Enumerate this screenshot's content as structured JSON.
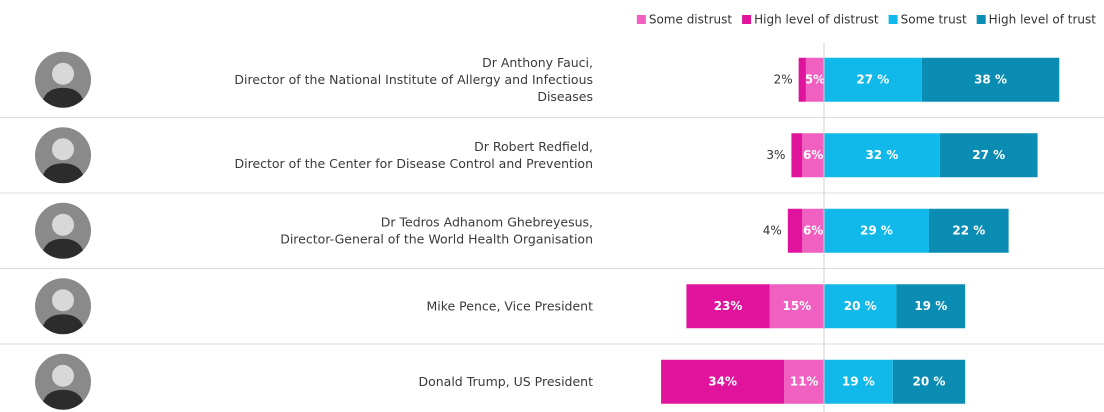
{
  "chart_data": {
    "type": "diverging-bar",
    "categories": [
      "Dr Anthony Fauci,\nDirector of the National Institute of Allergy and Infectious\nDiseases",
      "Dr Robert Redfield,\nDirector of the Center for Disease Control and Prevention",
      "Dr Tedros Adhanom Ghebreyesus,\nDirector-General of the World Health Organisation",
      "Mike Pence, Vice President",
      "Donald Trump, US President"
    ],
    "series": [
      {
        "name": "Some distrust",
        "color": "#f060c0",
        "side": "left",
        "values": [
          5,
          6,
          6,
          15,
          11
        ],
        "value_labels": [
          "5%",
          "6%",
          "6%",
          "15%",
          "11%"
        ]
      },
      {
        "name": "High level of distrust",
        "color": "#e0139c",
        "side": "left",
        "values": [
          2,
          3,
          4,
          23,
          34
        ],
        "value_labels": [
          "2%",
          "3%",
          "4%",
          "23%",
          "34%"
        ]
      },
      {
        "name": "Some trust",
        "color": "#10b9ea",
        "side": "right",
        "values": [
          27,
          32,
          29,
          20,
          19
        ],
        "value_labels": [
          "27 %",
          "32 %",
          "29 %",
          "20 %",
          "19 %"
        ]
      },
      {
        "name": "High level of trust",
        "color": "#0b8cb3",
        "side": "right",
        "values": [
          38,
          27,
          22,
          19,
          20
        ],
        "value_labels": [
          "38 %",
          "27 %",
          "22 %",
          "19 %",
          "20 %"
        ]
      }
    ]
  }
}
